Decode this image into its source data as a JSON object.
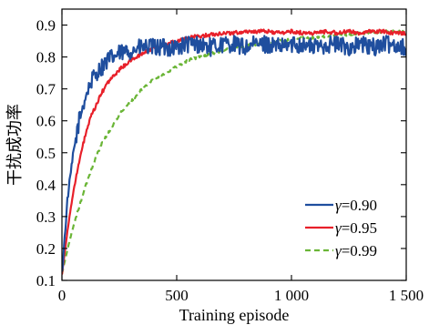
{
  "chart_data": {
    "type": "line",
    "title": "",
    "xlabel": "Training episode",
    "ylabel": "干扰成功率",
    "xlim": [
      0,
      1500
    ],
    "ylim": [
      0.1,
      0.95
    ],
    "xticks": [
      0,
      500,
      1000,
      1500
    ],
    "xtick_labels": [
      "0",
      "500",
      "1 000",
      "1 500"
    ],
    "yticks": [
      0.1,
      0.2,
      0.3,
      0.4,
      0.5,
      0.6,
      0.7,
      0.8,
      0.9
    ],
    "ytick_labels": [
      "0.1",
      "0.2",
      "0.3",
      "0.4",
      "0.5",
      "0.6",
      "0.7",
      "0.8",
      "0.9"
    ],
    "grid": false,
    "legend_position": "lower-right",
    "series": [
      {
        "name": "γ = 0.90",
        "legend_symbol": "γ",
        "legend_value": "=0.90",
        "color": "#1f4e9e",
        "dash": "solid",
        "x": [
          0,
          25,
          50,
          75,
          100,
          125,
          150,
          175,
          200,
          250,
          300,
          350,
          400,
          450,
          500,
          550,
          600,
          650,
          700,
          750,
          800,
          850,
          900,
          950,
          1000,
          1050,
          1100,
          1150,
          1200,
          1250,
          1300,
          1350,
          1400,
          1450,
          1500
        ],
        "values": [
          0.12,
          0.36,
          0.5,
          0.6,
          0.67,
          0.72,
          0.75,
          0.77,
          0.79,
          0.81,
          0.82,
          0.83,
          0.83,
          0.83,
          0.83,
          0.84,
          0.84,
          0.83,
          0.84,
          0.84,
          0.83,
          0.84,
          0.84,
          0.83,
          0.84,
          0.84,
          0.83,
          0.84,
          0.84,
          0.83,
          0.84,
          0.83,
          0.84,
          0.84,
          0.83
        ]
      },
      {
        "name": "γ = 0.95",
        "legend_symbol": "γ",
        "legend_value": "=0.95",
        "color": "#e8202a",
        "dash": "solid",
        "x": [
          0,
          25,
          50,
          75,
          100,
          125,
          150,
          175,
          200,
          250,
          300,
          350,
          400,
          450,
          500,
          550,
          600,
          650,
          700,
          750,
          800,
          850,
          900,
          950,
          1000,
          1050,
          1100,
          1150,
          1200,
          1250,
          1300,
          1350,
          1400,
          1450,
          1500
        ],
        "values": [
          0.12,
          0.26,
          0.38,
          0.47,
          0.55,
          0.61,
          0.65,
          0.69,
          0.72,
          0.76,
          0.79,
          0.81,
          0.83,
          0.84,
          0.85,
          0.86,
          0.865,
          0.87,
          0.875,
          0.875,
          0.88,
          0.88,
          0.88,
          0.875,
          0.88,
          0.875,
          0.875,
          0.88,
          0.875,
          0.88,
          0.875,
          0.88,
          0.88,
          0.875,
          0.875
        ]
      },
      {
        "name": "γ = 0.99",
        "legend_symbol": "γ",
        "legend_value": "=0.99",
        "color": "#6ab536",
        "dash": "dashed",
        "x": [
          0,
          25,
          50,
          75,
          100,
          125,
          150,
          175,
          200,
          250,
          300,
          350,
          400,
          450,
          500,
          550,
          600,
          650,
          700,
          750,
          800,
          850,
          900,
          950,
          1000,
          1050,
          1100,
          1150,
          1200,
          1250,
          1300,
          1350,
          1400,
          1450,
          1500
        ],
        "values": [
          0.12,
          0.2,
          0.27,
          0.33,
          0.39,
          0.44,
          0.49,
          0.53,
          0.56,
          0.62,
          0.66,
          0.7,
          0.73,
          0.75,
          0.77,
          0.79,
          0.8,
          0.81,
          0.82,
          0.83,
          0.835,
          0.84,
          0.845,
          0.85,
          0.855,
          0.86,
          0.86,
          0.865,
          0.87,
          0.87,
          0.875,
          0.875,
          0.88,
          0.88,
          0.88
        ]
      }
    ]
  }
}
